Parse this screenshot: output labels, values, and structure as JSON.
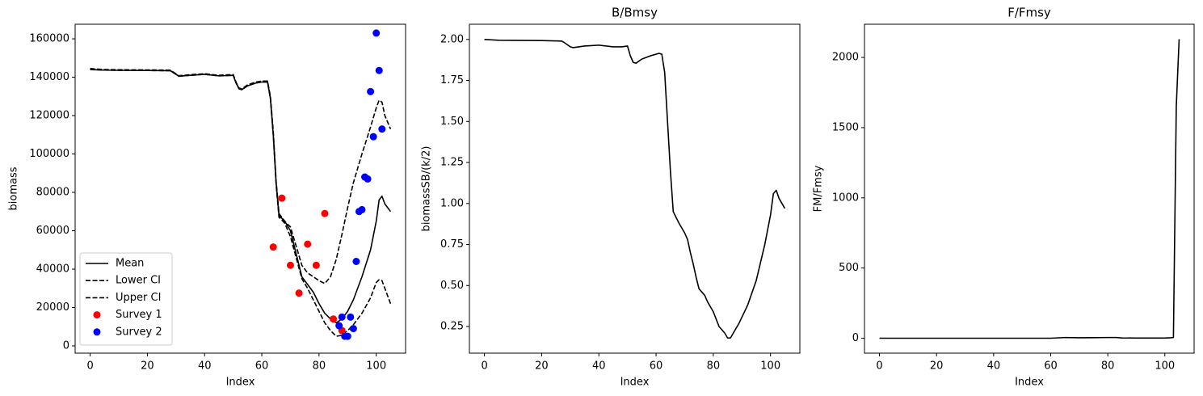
{
  "chart_data": [
    {
      "type": "line",
      "xlabel": "Index",
      "ylabel": "biomass",
      "xlim": [
        -5.25,
        110.25
      ],
      "xticks": [
        0,
        20,
        40,
        60,
        80,
        100
      ],
      "ylim": [
        -3800,
        167600
      ],
      "yticks": [
        0,
        20000,
        40000,
        60000,
        80000,
        100000,
        120000,
        140000,
        160000
      ],
      "legend": "lower left",
      "x": [
        0,
        5,
        10,
        20,
        28,
        30,
        31,
        35,
        40,
        45,
        50,
        51,
        52,
        53,
        55,
        58,
        60,
        62,
        63,
        64,
        65,
        66,
        68,
        70,
        72,
        74,
        76,
        78,
        80,
        82,
        84,
        86,
        88,
        90,
        92,
        95,
        98,
        100,
        101,
        102,
        103,
        105
      ],
      "series": [
        {
          "name": "Mean",
          "color": "#000000",
          "linestyle": "solid",
          "values": [
            144000,
            143700,
            143600,
            143500,
            143400,
            141500,
            140500,
            141000,
            141500,
            140700,
            141000,
            137000,
            134000,
            133500,
            135500,
            137000,
            137500,
            137500,
            129000,
            110000,
            85000,
            68000,
            65000,
            60000,
            48000,
            36000,
            32000,
            28000,
            22000,
            17000,
            14000,
            12000,
            14000,
            18000,
            24000,
            36000,
            50000,
            65000,
            76000,
            78000,
            74000,
            70000
          ]
        },
        {
          "name": "Lower CI",
          "color": "#000000",
          "linestyle": "dashed",
          "values": [
            144000,
            143700,
            143600,
            143500,
            143400,
            141500,
            140500,
            141000,
            141500,
            140700,
            141000,
            137000,
            134000,
            133500,
            135500,
            137000,
            137500,
            137500,
            129000,
            110000,
            84000,
            67000,
            64000,
            57000,
            46000,
            35000,
            30000,
            24000,
            18000,
            12000,
            8000,
            5000,
            5500,
            8000,
            11000,
            17000,
            25000,
            33000,
            34500,
            34000,
            30000,
            22000
          ]
        },
        {
          "name": "Upper CI",
          "color": "#000000",
          "linestyle": "dashed",
          "values": [
            144500,
            144000,
            143900,
            143800,
            143700,
            141800,
            140800,
            141300,
            141800,
            141000,
            141400,
            137400,
            134400,
            133900,
            136000,
            137500,
            138000,
            138000,
            130000,
            112000,
            86000,
            69000,
            65000,
            62000,
            52000,
            42000,
            38000,
            36000,
            34000,
            32500,
            36000,
            45000,
            58000,
            72000,
            85000,
            100000,
            114000,
            124000,
            128000,
            127000,
            120000,
            113000
          ]
        },
        {
          "name": "Survey 1",
          "color": "#ff0000",
          "type": "scatter",
          "x": [
            64,
            67,
            70,
            73,
            76,
            79,
            82,
            85,
            88
          ],
          "values": [
            51500,
            77000,
            42000,
            27500,
            53000,
            42000,
            69000,
            14000,
            8000
          ]
        },
        {
          "name": "Survey 2",
          "color": "#0000ff",
          "type": "scatter",
          "x": [
            87,
            88,
            89,
            90,
            91,
            92,
            93,
            94,
            95,
            96,
            97,
            98,
            99,
            100,
            101,
            102
          ],
          "values": [
            10500,
            15000,
            5000,
            5000,
            15000,
            9000,
            44000,
            70000,
            71000,
            88000,
            87000,
            132500,
            109000,
            163000,
            143500,
            113000
          ]
        }
      ]
    },
    {
      "type": "line",
      "title": "B/Bmsy",
      "xlabel": "Index",
      "ylabel": "biomassSB/(k/2)",
      "xlim": [
        -5.25,
        110.25
      ],
      "xticks": [
        0,
        20,
        40,
        60,
        80,
        100
      ],
      "ylim": [
        0.0875,
        2.0925
      ],
      "yticks": [
        0.25,
        {
          "value": 0.5,
          "label": "0.50"
        },
        0.75,
        {
          "value": 1,
          "label": "1.00"
        },
        1.25,
        {
          "value": 1.5,
          "label": "1.50"
        },
        1.75,
        {
          "value": 2,
          "label": "2.00"
        }
      ],
      "x": [
        0,
        5,
        20,
        27,
        28,
        30,
        31,
        33,
        35,
        40,
        45,
        48,
        50,
        51,
        52,
        53,
        55,
        58,
        60,
        61,
        62,
        63,
        64,
        65,
        66,
        68,
        70,
        71,
        72,
        73,
        74,
        75,
        77,
        78,
        80,
        82,
        84,
        85,
        86,
        87,
        89,
        92,
        95,
        98,
        100,
        101,
        102,
        103,
        105
      ],
      "series": [
        {
          "color": "#000000",
          "linestyle": "solid",
          "values": [
            2.0,
            1.995,
            1.993,
            1.99,
            1.98,
            1.955,
            1.95,
            1.955,
            1.96,
            1.965,
            1.955,
            1.955,
            1.96,
            1.9,
            1.86,
            1.855,
            1.88,
            1.9,
            1.91,
            1.915,
            1.91,
            1.8,
            1.5,
            1.2,
            0.95,
            0.88,
            0.82,
            0.78,
            0.7,
            0.63,
            0.55,
            0.48,
            0.44,
            0.4,
            0.34,
            0.25,
            0.21,
            0.18,
            0.18,
            0.21,
            0.27,
            0.38,
            0.53,
            0.75,
            0.93,
            1.06,
            1.08,
            1.03,
            0.97
          ]
        }
      ]
    },
    {
      "type": "line",
      "title": "F/Fmsy",
      "xlabel": "Index",
      "ylabel": "FM/Fmsy",
      "xlim": [
        -5.25,
        110.25
      ],
      "xticks": [
        0,
        20,
        40,
        60,
        80,
        100
      ],
      "ylim": [
        -106.5,
        2236.5
      ],
      "yticks": [
        0,
        500,
        1000,
        1500,
        2000
      ],
      "x": [
        0,
        60,
        65,
        70,
        75,
        80,
        83,
        85,
        90,
        100,
        102,
        103,
        104,
        105
      ],
      "series": [
        {
          "color": "#000000",
          "linestyle": "solid",
          "values": [
            0,
            0,
            5,
            3,
            4,
            5,
            5,
            2,
            1,
            1,
            3,
            5,
            1650,
            2130
          ]
        }
      ]
    }
  ]
}
